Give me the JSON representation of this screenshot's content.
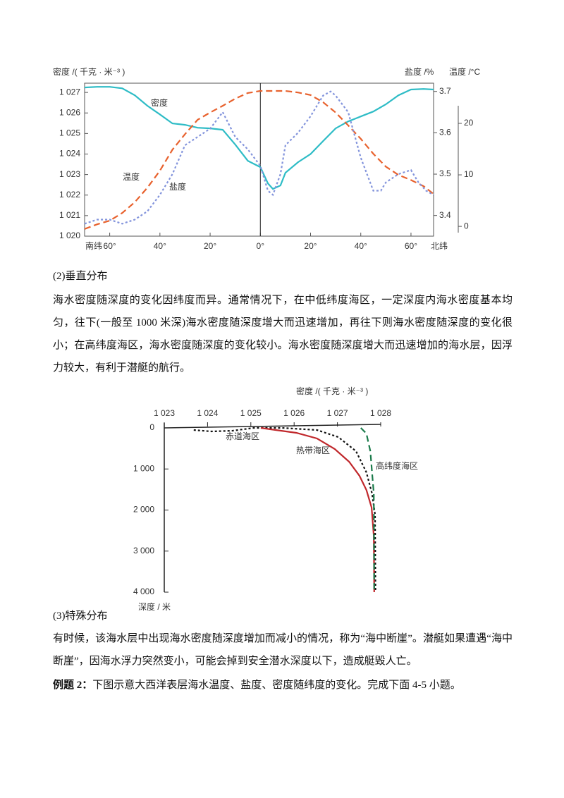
{
  "chart_data": [
    {
      "type": "line",
      "y_label": "密度 /( 千克 · 米⁻³ )",
      "y2_label": "盐度 /%",
      "y3_label": "温度 /°C",
      "x_label_left": "南纬",
      "x_label_right": "北纬",
      "xlim": [
        -70,
        69
      ],
      "xticks": [
        {
          "value": -60,
          "label": "60°"
        },
        {
          "value": -40,
          "label": "40°"
        },
        {
          "value": -20,
          "label": "20°"
        },
        {
          "value": 0,
          "label": "0°"
        },
        {
          "value": 20,
          "label": "20°"
        },
        {
          "value": 40,
          "label": "40°"
        },
        {
          "value": 60,
          "label": "60°"
        }
      ],
      "ylim": [
        1020,
        1027.45
      ],
      "yticks": [
        {
          "value": 1020,
          "label": "1 020"
        },
        {
          "value": 1021,
          "label": "1 021"
        },
        {
          "value": 1022,
          "label": "1 022"
        },
        {
          "value": 1023,
          "label": "1 023"
        },
        {
          "value": 1024,
          "label": "1 024"
        },
        {
          "value": 1025,
          "label": "1 025"
        },
        {
          "value": 1026,
          "label": "1 026"
        },
        {
          "value": 1027,
          "label": "1 027"
        }
      ],
      "y2lim": [
        3.35,
        3.72
      ],
      "y2ticks": [
        3.4,
        3.5,
        3.6,
        3.7
      ],
      "y3lim": [
        -1.9,
        27.8
      ],
      "y3ticks": [
        0,
        10,
        20
      ],
      "series": [
        {
          "name": "密度",
          "color": "#2ebcc6",
          "style": "solid",
          "axis": "y",
          "x": [
            -70,
            -65,
            -60,
            -55,
            -50,
            -45,
            -40,
            -35,
            -30,
            -25,
            -20,
            -15,
            -10,
            -5,
            0,
            3,
            5,
            8,
            10,
            15,
            20,
            25,
            30,
            35,
            40,
            45,
            50,
            55,
            60,
            65,
            69
          ],
          "values": [
            1027.24,
            1027.27,
            1027.27,
            1027.2,
            1026.86,
            1026.35,
            1025.93,
            1025.49,
            1025.42,
            1025.28,
            1025.25,
            1025.18,
            1024.46,
            1023.67,
            1023.36,
            1022.57,
            1022.3,
            1022.47,
            1023.09,
            1023.6,
            1024.0,
            1024.63,
            1025.25,
            1025.59,
            1025.83,
            1026.07,
            1026.42,
            1026.86,
            1027.14,
            1027.17,
            1027.14
          ]
        },
        {
          "name": "温度",
          "color": "#e8622e",
          "style": "dashed",
          "axis": "y3",
          "x": [
            -70,
            -65,
            -60,
            -55,
            -50,
            -45,
            -40,
            -35,
            -30,
            -25,
            -20,
            -15,
            -10,
            -5,
            0,
            5,
            10,
            15,
            20,
            25,
            30,
            35,
            40,
            45,
            50,
            55,
            60,
            65,
            69
          ],
          "values": [
            -0.5,
            0.4,
            1.1,
            2.6,
            4.7,
            7.5,
            10.8,
            14.9,
            17.9,
            20.7,
            22.1,
            23.4,
            24.8,
            25.9,
            26.3,
            26.3,
            26.3,
            26.0,
            25.5,
            24.1,
            22.1,
            19.6,
            17.0,
            14.1,
            11.6,
            10.0,
            9.0,
            7.8,
            6.3
          ]
        },
        {
          "name": "盐度",
          "color": "#8394dc",
          "style": "dotted",
          "axis": "y2",
          "x": [
            -70,
            -65,
            -60,
            -55,
            -50,
            -45,
            -40,
            -35,
            -30,
            -25,
            -20,
            -15,
            -10,
            -5,
            0,
            3,
            5,
            8,
            10,
            15,
            20,
            25,
            28,
            30,
            35,
            40,
            45,
            48,
            50,
            55,
            60,
            63,
            66,
            69
          ],
          "values": [
            3.38,
            3.39,
            3.39,
            3.38,
            3.39,
            3.41,
            3.45,
            3.5,
            3.57,
            3.59,
            3.61,
            3.65,
            3.59,
            3.56,
            3.52,
            3.46,
            3.45,
            3.5,
            3.57,
            3.6,
            3.64,
            3.69,
            3.7,
            3.69,
            3.65,
            3.54,
            3.46,
            3.46,
            3.48,
            3.5,
            3.51,
            3.48,
            3.46,
            3.45
          ]
        }
      ]
    },
    {
      "type": "line",
      "x_label": "密度 /( 千克 · 米⁻³ )",
      "y_label": "深度 / 米",
      "xlim": [
        1023,
        1028
      ],
      "xticks": [
        {
          "value": 1023,
          "label": "1 023"
        },
        {
          "value": 1024,
          "label": "1 024"
        },
        {
          "value": 1025,
          "label": "1 025"
        },
        {
          "value": 1026,
          "label": "1 026"
        },
        {
          "value": 1027,
          "label": "1 027"
        },
        {
          "value": 1028,
          "label": "1 028"
        }
      ],
      "ylim": [
        0,
        4000
      ],
      "y_inverted": true,
      "yticks": [
        0,
        {
          "value": 1000,
          "label": "1 000"
        },
        {
          "value": 2000,
          "label": "2 000"
        },
        {
          "value": 3000,
          "label": "3 000"
        },
        {
          "value": 4000,
          "label": "4 000"
        }
      ],
      "series": [
        {
          "name": "赤道海区",
          "color": "#111111",
          "style": "dotted",
          "x": [
            1023.68,
            1024.09,
            1024.58,
            1025.07,
            1025.72,
            1026.53,
            1027.02,
            1027.43,
            1027.67,
            1027.8,
            1027.87,
            1027.88
          ],
          "values": [
            52,
            86,
            69,
            0,
            0,
            52,
            223,
            566,
            1082,
            1597,
            2112,
            4000
          ]
        },
        {
          "name": "热带海区",
          "color": "#c0282c",
          "style": "solid",
          "x": [
            1025.23,
            1025.56,
            1026.05,
            1026.53,
            1026.94,
            1027.27,
            1027.51,
            1027.67,
            1027.79,
            1027.84,
            1027.85
          ],
          "values": [
            0,
            50,
            120,
            258,
            515,
            824,
            1167,
            1511,
            1940,
            2627,
            4000
          ]
        },
        {
          "name": "高纬度海区",
          "color": "#1a7a4a",
          "style": "dashed",
          "x": [
            1027.54,
            1027.67,
            1027.76,
            1027.8,
            1027.84,
            1027.85
          ],
          "values": [
            0,
            137,
            567,
            1082,
            1597,
            4000
          ]
        }
      ]
    }
  ],
  "document": {
    "section2_heading": "(2)垂直分布",
    "section2_text": "海水密度随深度的变化因纬度而异。通常情况下，在中低纬度海区，一定深度内海水密度基本均匀，往下(一般至 1000 米深)海水密度随深度增大而迅速增加，再往下则海水密度随深度的变化很小；在高纬度海区，海水密度随深度的变化较小。海水密度随深度增大而迅速增加的海水层，因浮力较大，有利于潜艇的航行。",
    "section3_heading": "(3)特殊分布",
    "section3_text": "有时候，该海水层中出现海水密度随深度增加而减小的情况，称为“海中断崖”。潜艇如果遭遇“海中断崖”，因海水浮力突然变小，可能会掉到安全潜水深度以下，造成艇毁人亡。",
    "example_label": "例题 2：",
    "example_text": "下图示意大西洋表层海水温度、盐度、密度随纬度的变化。完成下面 4-5 小题。"
  }
}
